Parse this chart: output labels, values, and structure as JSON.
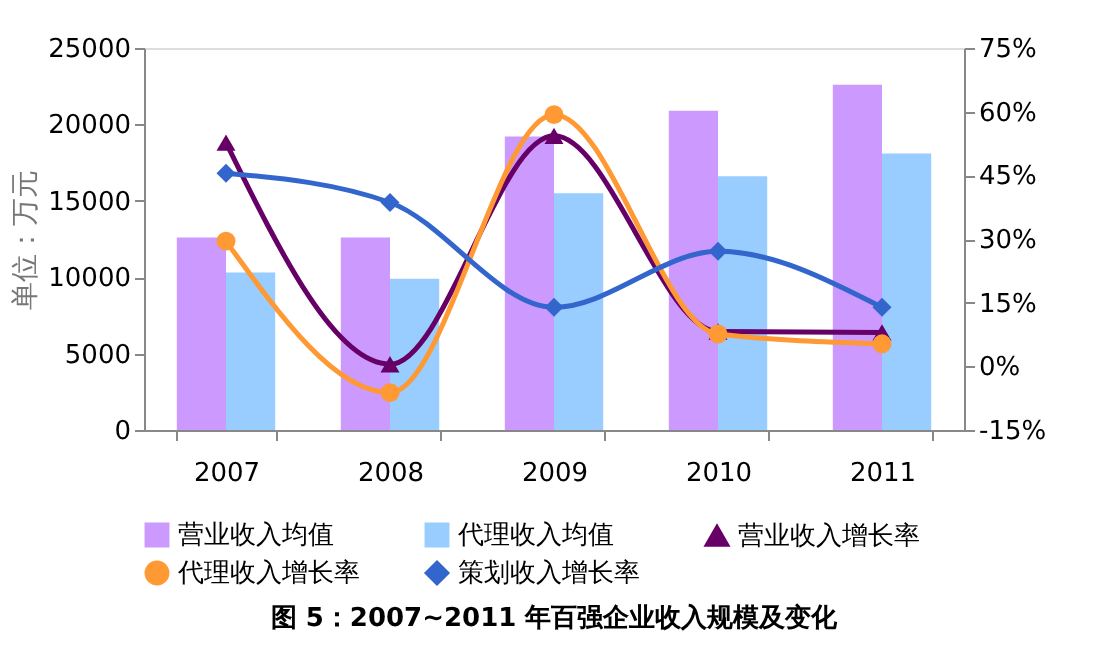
{
  "chart_data": {
    "type": "bar",
    "title": "图 5：2007~2011 年百强企业收入规模及变化",
    "ylabel": "单位：万元",
    "categories": [
      "2007",
      "2008",
      "2009",
      "2010",
      "2011"
    ],
    "series": [
      {
        "name": "营业收入均值",
        "color": "#cc99ff",
        "values": [
          12600,
          12600,
          19200,
          20900,
          22600
        ]
      },
      {
        "name": "代理收入均值",
        "color": "#99ccff",
        "values": [
          10300,
          9900,
          15500,
          16600,
          18100
        ]
      },
      {
        "name": "营业收入增长率",
        "type": "line",
        "axis": "y2",
        "marker": "triangle",
        "color": "#660066",
        "values": [
          52.7,
          0.5,
          54.3,
          8.2,
          8.0
        ]
      },
      {
        "name": "代理收入增长率",
        "type": "line",
        "axis": "y2",
        "marker": "circle",
        "color": "#ff9933",
        "values": [
          29.5,
          -6.2,
          59.3,
          7.6,
          5.3
        ]
      },
      {
        "name": "策划收入增长率",
        "type": "line",
        "axis": "y2",
        "marker": "diamond",
        "color": "#3366cc",
        "values": [
          45.5,
          38.6,
          13.9,
          27.1,
          13.9
        ]
      }
    ],
    "ylim": [
      0,
      25000
    ],
    "yticks": [
      0,
      5000,
      10000,
      15000,
      20000,
      25000
    ],
    "y2lim": [
      -15,
      75
    ],
    "y2ticks": [
      {
        "value": -15,
        "label": "-15%"
      },
      {
        "value": 0,
        "label": "0%"
      },
      {
        "value": 15,
        "label": "15%"
      },
      {
        "value": 30,
        "label": "30%"
      },
      {
        "value": 45,
        "label": "45%"
      },
      {
        "value": 60,
        "label": "60%"
      },
      {
        "value": 75,
        "label": "75%"
      }
    ],
    "legend": "bottom",
    "grid": false
  }
}
